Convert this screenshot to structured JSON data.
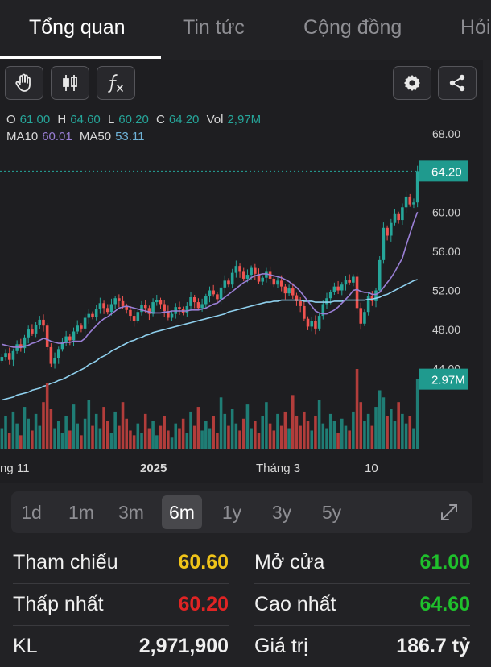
{
  "tabs": [
    {
      "label": "Tổng quan",
      "active": true
    },
    {
      "label": "Tin tức",
      "active": false
    },
    {
      "label": "Cộng đồng",
      "active": false
    },
    {
      "label": "Hỏi",
      "active": false
    }
  ],
  "toolbar": {
    "icons": [
      "hand-icon",
      "candlestick-icon",
      "function-icon",
      "settings-icon",
      "share-icon"
    ]
  },
  "ohlc": {
    "o_label": "O",
    "o_value": "61.00",
    "h_label": "H",
    "h_value": "64.60",
    "l_label": "L",
    "l_value": "60.20",
    "c_label": "C",
    "c_value": "64.20",
    "vol_label": "Vol",
    "vol_value": "2,97M"
  },
  "ma": {
    "ma10_label": "MA10",
    "ma10_value": "60.01",
    "ma50_label": "MA50",
    "ma50_value": "53.11"
  },
  "chart_data": {
    "type": "candlestick",
    "y_ticks": [
      "68.00",
      "64.00",
      "60.00",
      "56.00",
      "52.00",
      "48.00",
      "44.00"
    ],
    "ylim": [
      41.5,
      69.5
    ],
    "x_ticks": [
      "ng 11",
      "2025",
      "Tháng 3",
      "10"
    ],
    "last_price_label": "64.20",
    "last_volume_label": "2.97M",
    "colors": {
      "up": "#26a69a",
      "down": "#ef5350",
      "ma10": "#9a7fd6",
      "ma50": "#8fd0ee"
    },
    "closes": [
      45.2,
      45.6,
      44.9,
      45.8,
      46.5,
      46.1,
      47.2,
      48.0,
      47.6,
      48.5,
      49.0,
      48.4,
      46.2,
      44.5,
      45.1,
      46.0,
      46.7,
      47.3,
      46.9,
      47.8,
      48.4,
      48.1,
      49.2,
      49.6,
      49.3,
      50.1,
      50.7,
      50.2,
      49.8,
      50.6,
      51.2,
      50.9,
      50.4,
      50.0,
      49.4,
      48.9,
      49.8,
      50.5,
      50.2,
      49.6,
      50.8,
      51.0,
      50.6,
      49.9,
      49.2,
      49.6,
      50.3,
      50.1,
      49.7,
      50.4,
      51.3,
      50.8,
      50.2,
      50.6,
      51.4,
      52.0,
      51.6,
      51.1,
      52.3,
      53.0,
      52.6,
      53.8,
      54.5,
      53.9,
      53.2,
      53.6,
      54.3,
      53.7,
      52.9,
      53.3,
      53.9,
      53.2,
      52.6,
      53.0,
      52.4,
      51.7,
      52.2,
      51.5,
      50.9,
      50.4,
      49.1,
      48.3,
      48.9,
      48.1,
      49.4,
      50.6,
      51.2,
      51.8,
      52.4,
      52.0,
      52.6,
      53.1,
      52.8,
      53.4,
      50.2,
      48.6,
      49.8,
      51.4,
      50.9,
      52.0,
      55.1,
      58.4,
      57.6,
      58.9,
      59.8,
      59.2,
      60.5,
      61.6,
      60.8,
      61.0,
      64.2
    ],
    "ma10": [
      46.5,
      46.4,
      46.3,
      46.2,
      46.2,
      46.2,
      46.3,
      46.4,
      46.6,
      46.7,
      46.9,
      47.1,
      47.0,
      46.8,
      46.7,
      46.6,
      46.6,
      46.7,
      46.7,
      46.8,
      46.8,
      46.8,
      47.1,
      47.6,
      48.0,
      48.4,
      48.8,
      49.1,
      49.3,
      49.6,
      49.9,
      50.2,
      50.3,
      50.4,
      50.3,
      50.2,
      50.1,
      50.0,
      49.9,
      49.8,
      49.7,
      49.7,
      49.7,
      49.8,
      49.8,
      49.9,
      49.9,
      49.9,
      49.9,
      49.9,
      50.0,
      50.0,
      50.0,
      50.1,
      50.2,
      50.4,
      50.6,
      50.7,
      51.0,
      51.3,
      51.6,
      51.9,
      52.2,
      52.5,
      52.8,
      53.0,
      53.3,
      53.5,
      53.6,
      53.7,
      53.7,
      53.6,
      53.5,
      53.4,
      53.3,
      53.1,
      52.9,
      52.6,
      52.3,
      51.9,
      51.4,
      50.9,
      50.4,
      49.9,
      49.7,
      49.6,
      49.6,
      49.8,
      50.0,
      50.3,
      50.7,
      51.1,
      51.5,
      52.0,
      52.1,
      51.9,
      51.8,
      51.8,
      51.6,
      51.6,
      51.8,
      52.3,
      52.8,
      53.3,
      53.9,
      54.6,
      55.3,
      56.6,
      57.8,
      59.0,
      60.01
    ],
    "ma50": [
      40.8,
      40.9,
      41.0,
      41.1,
      41.3,
      41.4,
      41.5,
      41.6,
      41.8,
      41.9,
      42.0,
      42.2,
      42.3,
      42.5,
      42.6,
      42.8,
      42.9,
      43.1,
      43.3,
      43.5,
      43.7,
      43.9,
      44.1,
      44.4,
      44.6,
      44.8,
      45.1,
      45.3,
      45.5,
      45.8,
      46.0,
      46.2,
      46.4,
      46.6,
      46.8,
      46.9,
      47.1,
      47.2,
      47.4,
      47.5,
      47.7,
      47.8,
      47.9,
      48.0,
      48.1,
      48.2,
      48.3,
      48.4,
      48.5,
      48.6,
      48.7,
      48.8,
      48.9,
      49.0,
      49.1,
      49.2,
      49.3,
      49.4,
      49.5,
      49.6,
      49.8,
      49.9,
      50.0,
      50.1,
      50.2,
      50.3,
      50.4,
      50.5,
      50.6,
      50.7,
      50.8,
      50.8,
      50.9,
      50.9,
      51.0,
      51.0,
      51.0,
      51.0,
      51.0,
      51.0,
      50.9,
      50.9,
      50.9,
      50.8,
      50.8,
      50.8,
      50.8,
      50.8,
      50.9,
      50.9,
      50.9,
      51.0,
      51.0,
      51.0,
      51.0,
      51.0,
      51.0,
      51.1,
      51.1,
      51.2,
      51.3,
      51.5,
      51.6,
      51.8,
      52.0,
      52.2,
      52.4,
      52.6,
      52.8,
      53.0,
      53.11
    ],
    "volumes": [
      0.9,
      1.4,
      0.7,
      1.6,
      1.1,
      0.6,
      1.8,
      1.3,
      0.8,
      1.5,
      1.0,
      2.0,
      2.8,
      1.7,
      0.9,
      1.2,
      0.7,
      1.4,
      0.8,
      1.9,
      1.1,
      0.6,
      1.3,
      2.1,
      1.0,
      1.5,
      0.9,
      1.8,
      1.2,
      0.7,
      1.6,
      1.0,
      2.0,
      1.3,
      0.8,
      0.6,
      1.1,
      0.7,
      1.5,
      0.9,
      1.2,
      0.6,
      1.0,
      1.4,
      0.8,
      0.5,
      1.1,
      0.9,
      1.3,
      0.7,
      1.6,
      1.0,
      1.8,
      0.8,
      1.2,
      0.9,
      1.4,
      0.7,
      2.2,
      1.5,
      1.0,
      1.7,
      1.1,
      0.8,
      1.3,
      1.9,
      0.9,
      1.2,
      0.7,
      1.4,
      2.0,
      1.1,
      0.8,
      1.5,
      1.0,
      1.6,
      0.9,
      2.3,
      1.4,
      1.0,
      1.6,
      1.2,
      0.8,
      1.4,
      2.1,
      1.1,
      0.9,
      1.5,
      1.2,
      0.7,
      1.3,
      1.0,
      0.8,
      1.6,
      3.4,
      2.0,
      1.2,
      1.5,
      1.0,
      1.8,
      2.5,
      2.2,
      1.4,
      1.7,
      1.2,
      2.0,
      1.5,
      1.1,
      1.4,
      0.9,
      2.97
    ]
  },
  "range_selector": {
    "options": [
      "1d",
      "1m",
      "3m",
      "6m",
      "1y",
      "3y",
      "5y"
    ],
    "active": "6m"
  },
  "stats": {
    "tham_chieu_label": "Tham chiếu",
    "tham_chieu_value": "60.60",
    "mo_cua_label": "Mở cửa",
    "mo_cua_value": "61.00",
    "thap_nhat_label": "Thấp nhất",
    "thap_nhat_value": "60.20",
    "cao_nhat_label": "Cao nhất",
    "cao_nhat_value": "64.60",
    "kl_label": "KL",
    "kl_value": "2,971,900",
    "gia_tri_label": "Giá trị",
    "gia_tri_value": "186.7 tỷ"
  },
  "colors": {
    "yellow": "#f0c419",
    "red": "#e02424",
    "green": "#1fc12c"
  }
}
